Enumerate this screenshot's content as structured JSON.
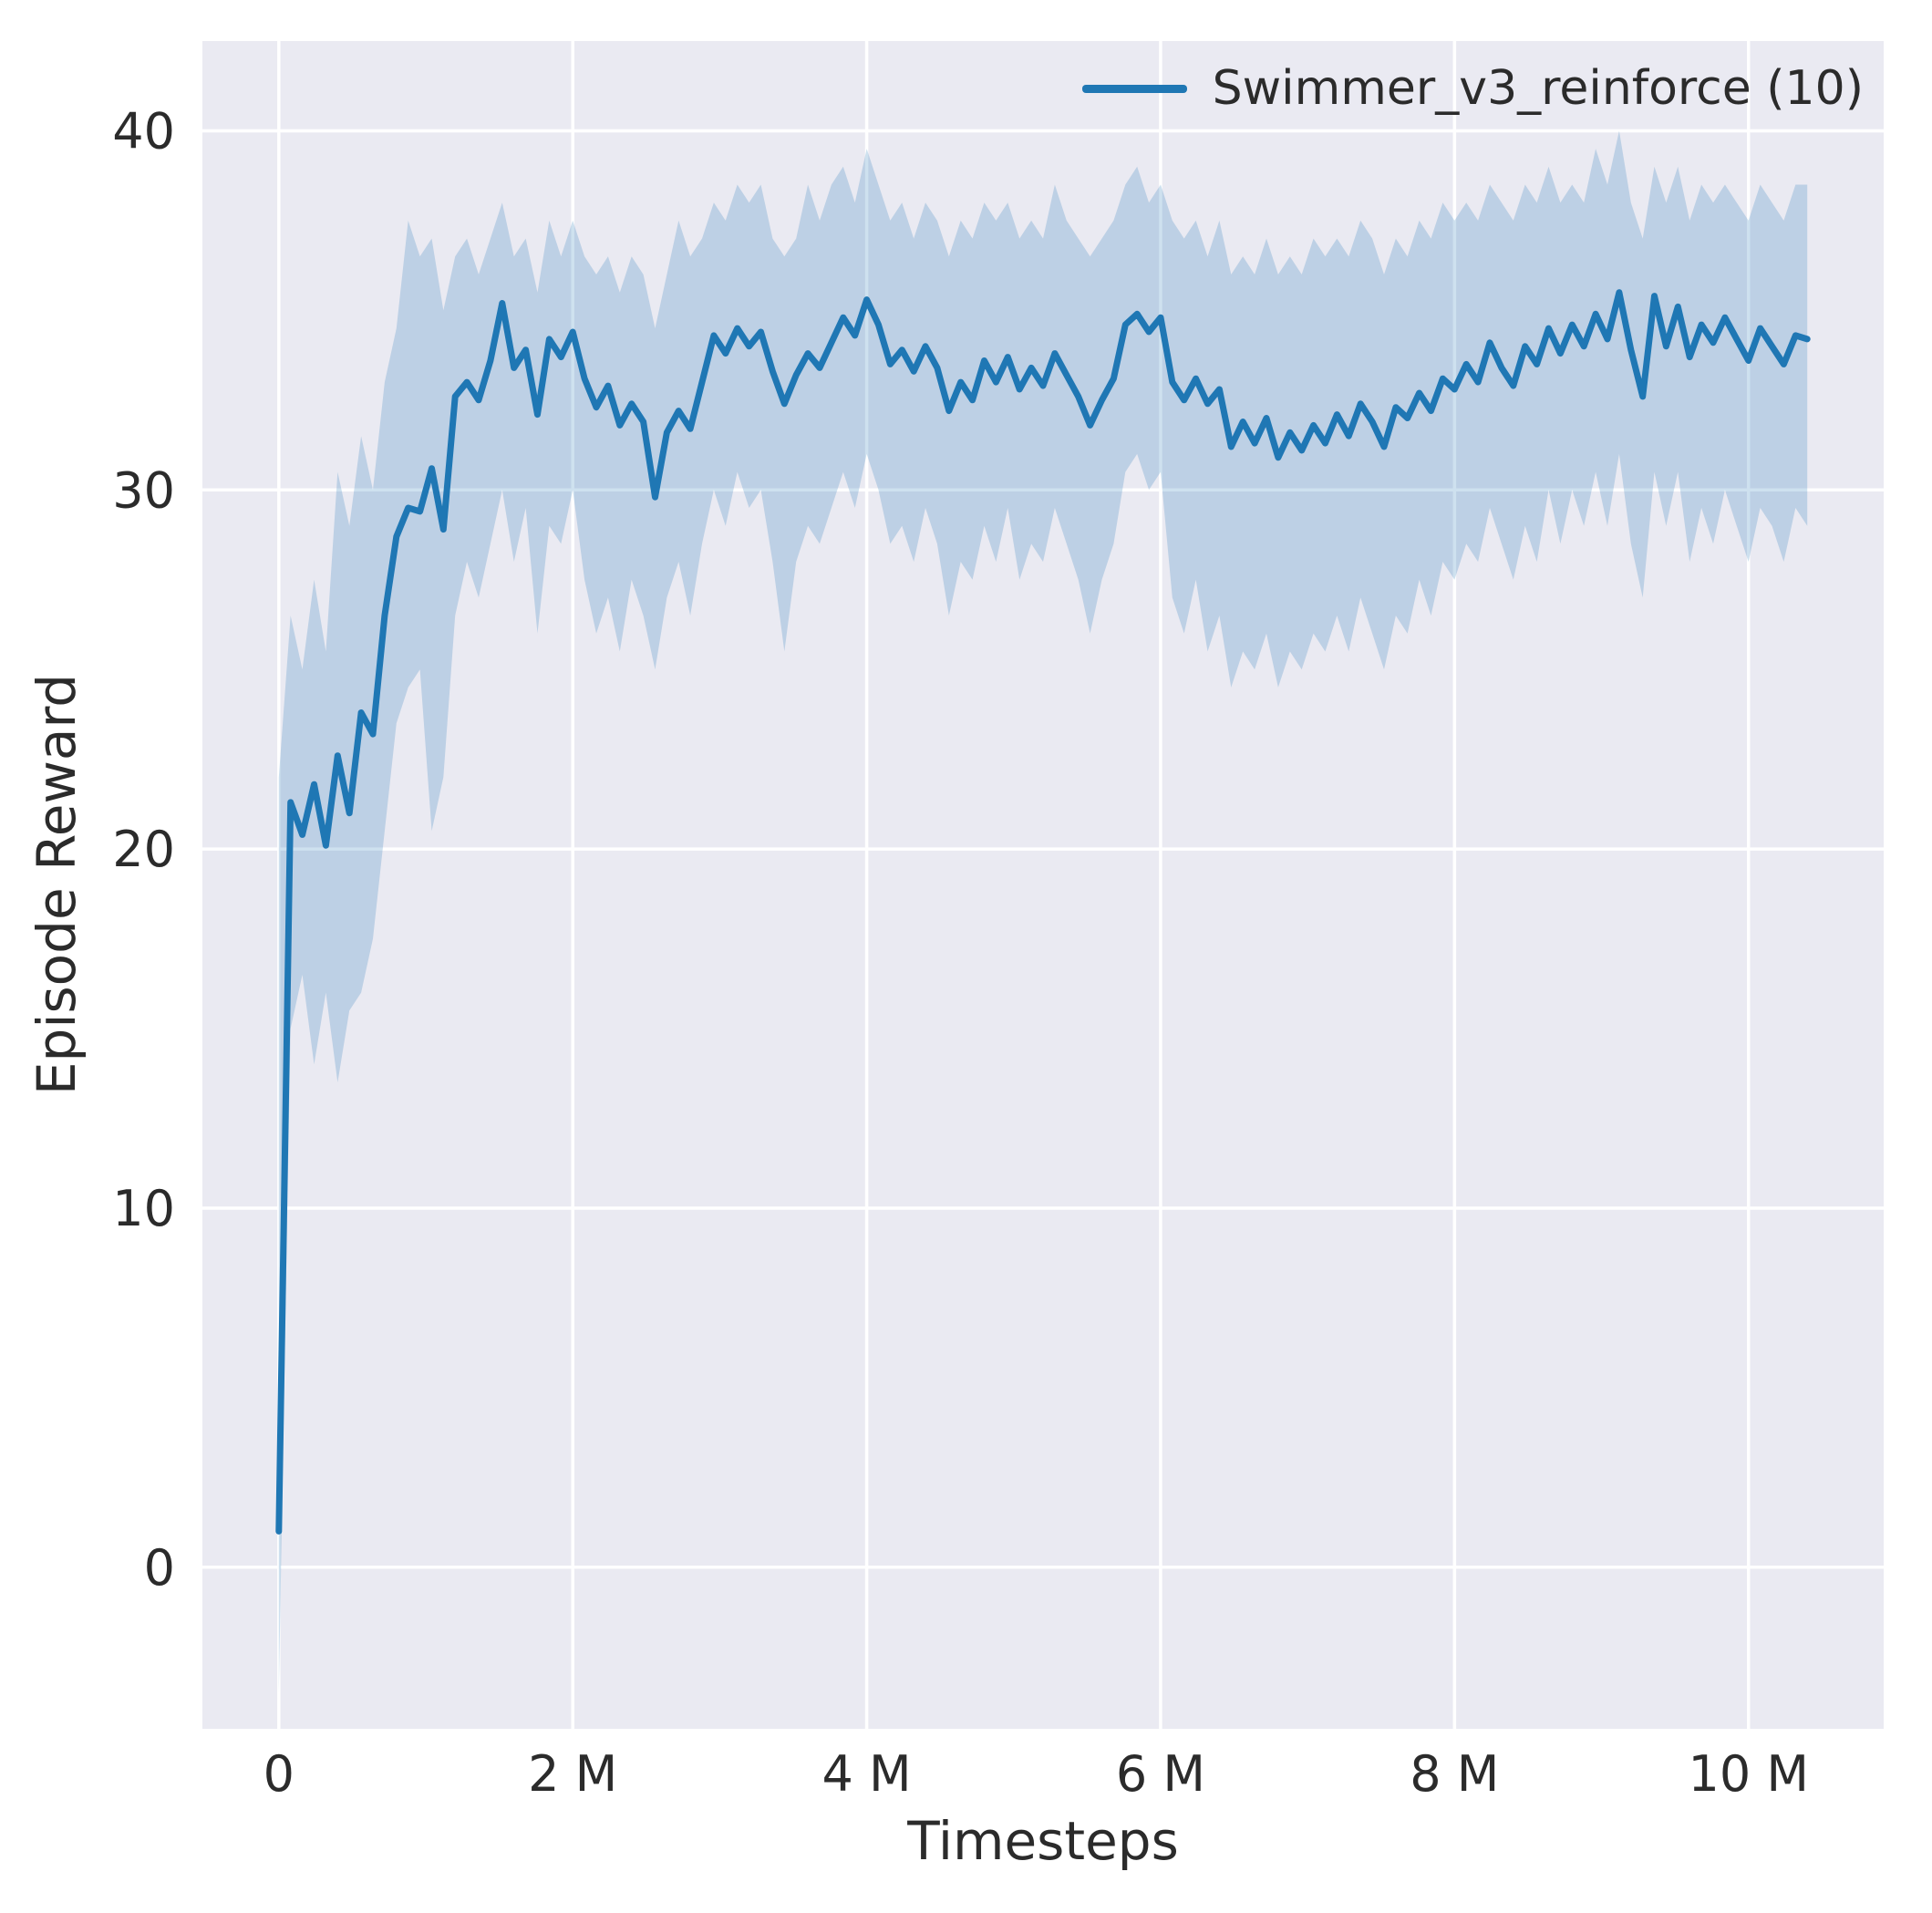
{
  "figure": {
    "kind": "seaborn-line-plot-with-confidence-band"
  },
  "colors": {
    "figure_background": "#ffffff",
    "axes_background": "#eaeaf2",
    "grid": "#ffffff",
    "line": "#1f77b4",
    "band": "#1f77b4",
    "band_opacity": 0.22,
    "text": "#2b2b2b"
  },
  "chart_data": {
    "type": "line",
    "title": "",
    "xlabel": "Timesteps",
    "ylabel": "Episode Reward",
    "x_unit": "millions of timesteps",
    "grid": true,
    "legend_position": "upper right",
    "xlim": [
      -0.52,
      10.92
    ],
    "ylim": [
      -4.5,
      42.5
    ],
    "xticks": {
      "values": [
        0,
        2,
        4,
        6,
        8,
        10
      ],
      "labels": [
        "0",
        "2 M",
        "4 M",
        "6 M",
        "8 M",
        "10 M"
      ]
    },
    "yticks": {
      "values": [
        0,
        10,
        20,
        30,
        40
      ],
      "labels": [
        "0",
        "10",
        "20",
        "30",
        "40"
      ]
    },
    "series": [
      {
        "name": "Swimmer_v3_reinforce (10)",
        "color": "#1f77b4",
        "line_width": 7,
        "x": [
          0,
          0.08,
          0.16,
          0.24,
          0.32,
          0.4,
          0.48,
          0.56,
          0.64,
          0.72,
          0.8,
          0.88,
          0.96,
          1.04,
          1.12,
          1.2,
          1.28,
          1.36,
          1.44,
          1.52,
          1.6,
          1.68,
          1.76,
          1.84,
          1.92,
          2.0,
          2.08,
          2.16,
          2.24,
          2.32,
          2.4,
          2.48,
          2.56,
          2.64,
          2.72,
          2.8,
          2.88,
          2.96,
          3.04,
          3.12,
          3.2,
          3.28,
          3.36,
          3.44,
          3.52,
          3.6,
          3.68,
          3.76,
          3.84,
          3.92,
          4.0,
          4.08,
          4.16,
          4.24,
          4.32,
          4.4,
          4.48,
          4.56,
          4.64,
          4.72,
          4.8,
          4.88,
          4.96,
          5.04,
          5.12,
          5.2,
          5.28,
          5.36,
          5.44,
          5.52,
          5.6,
          5.68,
          5.76,
          5.84,
          5.92,
          6.0,
          6.08,
          6.16,
          6.24,
          6.32,
          6.4,
          6.48,
          6.56,
          6.64,
          6.72,
          6.8,
          6.88,
          6.96,
          7.04,
          7.12,
          7.2,
          7.28,
          7.36,
          7.44,
          7.52,
          7.6,
          7.68,
          7.76,
          7.84,
          7.92,
          8.0,
          8.08,
          8.16,
          8.24,
          8.32,
          8.4,
          8.48,
          8.56,
          8.64,
          8.72,
          8.8,
          8.88,
          8.96,
          9.04,
          9.12,
          9.2,
          9.28,
          9.36,
          9.44,
          9.52,
          9.6,
          9.68,
          9.76,
          9.84,
          9.92,
          10.0,
          10.08,
          10.16,
          10.24,
          10.32,
          10.4
        ],
        "mean": [
          1.0,
          21.3,
          20.4,
          21.8,
          20.1,
          22.6,
          21.0,
          23.8,
          23.2,
          26.5,
          28.7,
          29.5,
          29.4,
          30.6,
          28.9,
          32.6,
          33.0,
          32.5,
          33.6,
          35.2,
          33.4,
          33.9,
          32.1,
          34.2,
          33.7,
          34.4,
          33.1,
          32.3,
          32.9,
          31.8,
          32.4,
          31.9,
          29.8,
          31.6,
          32.2,
          31.7,
          33.0,
          34.3,
          33.8,
          34.5,
          34.0,
          34.4,
          33.3,
          32.4,
          33.2,
          33.8,
          33.4,
          34.1,
          34.8,
          34.3,
          35.3,
          34.6,
          33.5,
          33.9,
          33.3,
          34.0,
          33.4,
          32.2,
          33.0,
          32.5,
          33.6,
          33.0,
          33.7,
          32.8,
          33.4,
          32.9,
          33.8,
          33.2,
          32.6,
          31.8,
          32.5,
          33.1,
          34.6,
          34.9,
          34.4,
          34.8,
          33.0,
          32.5,
          33.1,
          32.4,
          32.8,
          31.2,
          31.9,
          31.3,
          32.0,
          30.9,
          31.6,
          31.1,
          31.8,
          31.3,
          32.1,
          31.5,
          32.4,
          31.9,
          31.2,
          32.3,
          32.0,
          32.7,
          32.2,
          33.1,
          32.8,
          33.5,
          33.0,
          34.1,
          33.4,
          32.9,
          34.0,
          33.5,
          34.5,
          33.8,
          34.6,
          34.0,
          34.9,
          34.2,
          35.5,
          33.9,
          32.6,
          35.4,
          34.0,
          35.1,
          33.7,
          34.6,
          34.1,
          34.8,
          34.2,
          33.6,
          34.5,
          34.0,
          33.5,
          34.3,
          34.2
        ],
        "band_low": [
          -3.5,
          15.0,
          16.5,
          14.0,
          16.0,
          13.5,
          15.5,
          16.0,
          17.5,
          20.5,
          23.5,
          24.5,
          25.0,
          20.5,
          22.0,
          26.5,
          28.0,
          27.0,
          28.5,
          30.0,
          28.0,
          29.5,
          26.0,
          29.0,
          28.5,
          30.0,
          27.5,
          26.0,
          27.0,
          25.5,
          27.5,
          26.5,
          25.0,
          27.0,
          28.0,
          26.5,
          28.5,
          30.0,
          29.0,
          30.5,
          29.5,
          30.0,
          28.0,
          25.5,
          28.0,
          29.0,
          28.5,
          29.5,
          30.5,
          29.5,
          31.0,
          30.0,
          28.5,
          29.0,
          28.0,
          29.5,
          28.5,
          26.5,
          28.0,
          27.5,
          29.0,
          28.0,
          29.5,
          27.5,
          28.5,
          28.0,
          29.5,
          28.5,
          27.5,
          26.0,
          27.5,
          28.5,
          30.5,
          31.0,
          30.0,
          30.5,
          27.0,
          26.0,
          27.5,
          25.5,
          26.5,
          24.5,
          25.5,
          25.0,
          26.0,
          24.5,
          25.5,
          25.0,
          26.0,
          25.5,
          26.5,
          25.5,
          27.0,
          26.0,
          25.0,
          26.5,
          26.0,
          27.5,
          26.5,
          28.0,
          27.5,
          28.5,
          28.0,
          29.5,
          28.5,
          27.5,
          29.0,
          28.0,
          30.0,
          28.5,
          30.0,
          29.0,
          30.5,
          29.0,
          31.0,
          28.5,
          27.0,
          30.5,
          29.0,
          30.5,
          28.0,
          29.5,
          28.5,
          30.0,
          29.0,
          28.0,
          29.5,
          29.0,
          28.0,
          29.5,
          29.0
        ],
        "band_high": [
          22.0,
          26.5,
          25.0,
          27.5,
          25.5,
          30.5,
          29.0,
          31.5,
          30.0,
          33.0,
          34.5,
          37.5,
          36.5,
          37.0,
          35.0,
          36.5,
          37.0,
          36.0,
          37.0,
          38.0,
          36.5,
          37.0,
          35.5,
          37.5,
          36.5,
          37.5,
          36.5,
          36.0,
          36.5,
          35.5,
          36.5,
          36.0,
          34.5,
          36.0,
          37.5,
          36.5,
          37.0,
          38.0,
          37.5,
          38.5,
          38.0,
          38.5,
          37.0,
          36.5,
          37.0,
          38.5,
          37.5,
          38.5,
          39.0,
          38.0,
          39.5,
          38.5,
          37.5,
          38.0,
          37.0,
          38.0,
          37.5,
          36.5,
          37.5,
          37.0,
          38.0,
          37.5,
          38.0,
          37.0,
          37.5,
          37.0,
          38.5,
          37.5,
          37.0,
          36.5,
          37.0,
          37.5,
          38.5,
          39.0,
          38.0,
          38.5,
          37.5,
          37.0,
          37.5,
          36.5,
          37.5,
          36.0,
          36.5,
          36.0,
          37.0,
          36.0,
          36.5,
          36.0,
          37.0,
          36.5,
          37.0,
          36.5,
          37.5,
          37.0,
          36.0,
          37.0,
          36.5,
          37.5,
          37.0,
          38.0,
          37.5,
          38.0,
          37.5,
          38.5,
          38.0,
          37.5,
          38.5,
          38.0,
          39.0,
          38.0,
          38.5,
          38.0,
          39.5,
          38.5,
          40.0,
          38.0,
          37.0,
          39.0,
          38.0,
          39.0,
          37.5,
          38.5,
          38.0,
          38.5,
          38.0,
          37.5,
          38.5,
          38.0,
          37.5,
          38.5,
          38.5
        ]
      }
    ]
  }
}
